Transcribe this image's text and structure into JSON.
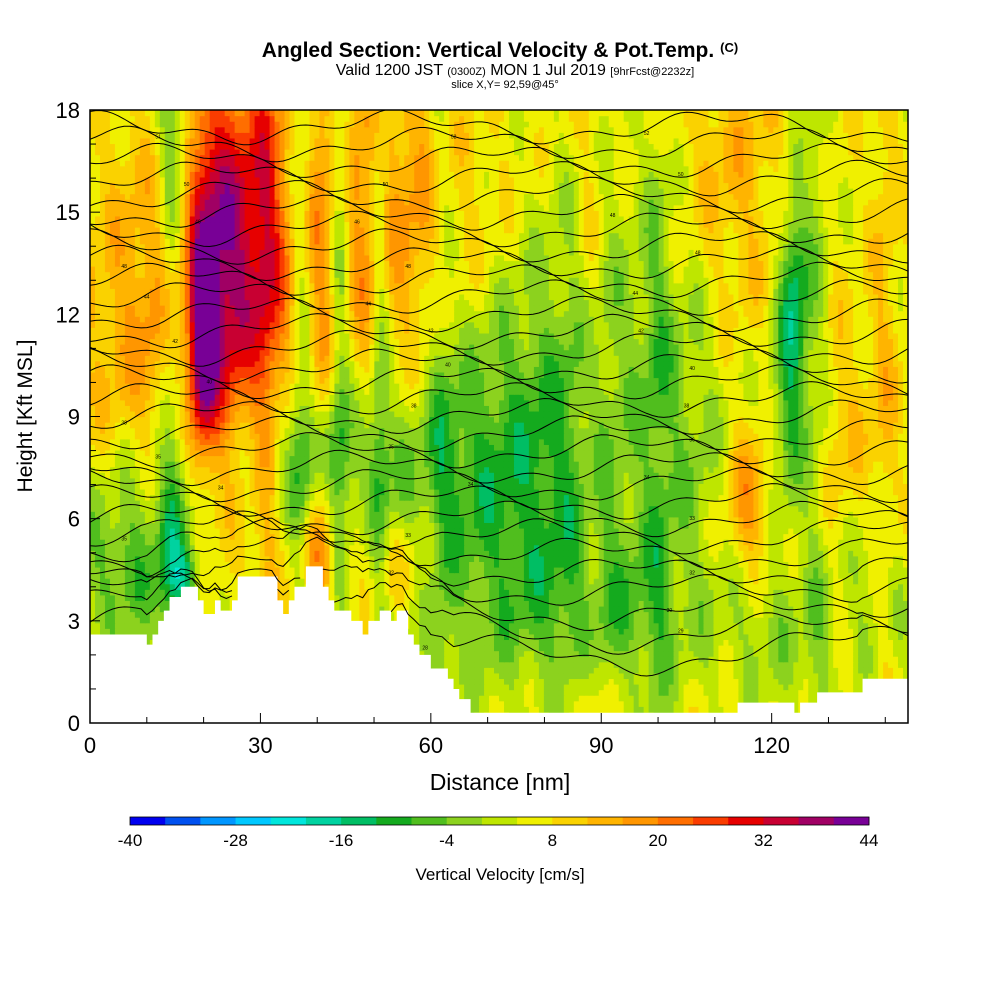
{
  "header": {
    "title": "Angled Section: Vertical Velocity & Pot.Temp.",
    "title_mark": "(C)",
    "subtitle_valid": "Valid 1200 JST",
    "subtitle_z": "(0300Z)",
    "subtitle_date": "MON 1 Jul 2019",
    "subtitle_fcst": "[9hrFcst@2232z]",
    "slice": "slice X,Y= 92,59@45°"
  },
  "colorbar": {
    "label": "Vertical Velocity [cm/s]",
    "tick_labels": [
      "-40",
      "-28",
      "-16",
      "-4",
      "8",
      "20",
      "32",
      "44"
    ],
    "levels": [
      -40,
      -36,
      -32,
      -28,
      -24,
      -20,
      -16,
      -12,
      -8,
      -4,
      0,
      4,
      8,
      12,
      16,
      20,
      24,
      28,
      32,
      36,
      40,
      44
    ],
    "colors": [
      "#0000f0",
      "#0050f0",
      "#0096ff",
      "#00c8ff",
      "#00e6dc",
      "#00d2a0",
      "#00be64",
      "#14aa1e",
      "#50be1e",
      "#8cd21e",
      "#bee600",
      "#f0f000",
      "#fad200",
      "#ffb400",
      "#ff9600",
      "#ff6e00",
      "#fa3c00",
      "#e60000",
      "#c80032",
      "#a00064",
      "#780096"
    ]
  },
  "chart_data": {
    "type": "heatmap",
    "title": "Angled Section: Vertical Velocity & Pot.Temp.",
    "xlabel": "Distance [nm]",
    "ylabel": "Height [Kft MSL]",
    "xlim": [
      0,
      144
    ],
    "ylim": [
      0,
      18
    ],
    "x_ticks": [
      0,
      30,
      60,
      90,
      120
    ],
    "x_tick_labels": [
      "0",
      "30",
      "60",
      "90",
      "120"
    ],
    "y_ticks": [
      0,
      3,
      6,
      9,
      12,
      15,
      18
    ],
    "y_tick_labels": [
      "0",
      "3",
      "6",
      "9",
      "12",
      "15",
      "18"
    ],
    "grid": false,
    "legend": "colorbar-bottom",
    "field": "Vertical Velocity [cm/s]",
    "background_value": 6,
    "features": [
      {
        "x": 20,
        "y": 12.5,
        "sx": 7,
        "sy": 4.5,
        "v": 30
      },
      {
        "x": 20,
        "y": 11,
        "sx": 1.5,
        "sy": 1.8,
        "v": 20
      },
      {
        "x": 25,
        "y": 15,
        "sx": 5,
        "sy": 3,
        "v": 10
      },
      {
        "x": 4,
        "y": 11,
        "sx": 6,
        "sy": 4,
        "v": 6
      },
      {
        "x": 16,
        "y": 15,
        "sx": 2,
        "sy": 8,
        "v": -14
      },
      {
        "x": 13,
        "y": 16,
        "sx": 3,
        "sy": 5,
        "v": -6
      },
      {
        "x": 10,
        "y": 6,
        "sx": 10,
        "sy": 2,
        "v": -10
      },
      {
        "x": 17,
        "y": 4.3,
        "sx": 2,
        "sy": 0.6,
        "v": -12
      },
      {
        "x": 6,
        "y": 4,
        "sx": 6,
        "sy": 1.5,
        "v": -8
      },
      {
        "x": 34,
        "y": 13,
        "sx": 5,
        "sy": 5,
        "v": 10
      },
      {
        "x": 37,
        "y": 14,
        "sx": 1.4,
        "sy": 9,
        "v": -10
      },
      {
        "x": 44,
        "y": 14,
        "sx": 1.3,
        "sy": 7,
        "v": -10
      },
      {
        "x": 48,
        "y": 14,
        "sx": 3,
        "sy": 6,
        "v": 10
      },
      {
        "x": 51,
        "y": 12,
        "sx": 1.2,
        "sy": 8,
        "v": -10
      },
      {
        "x": 56,
        "y": 14,
        "sx": 4,
        "sy": 5,
        "v": 8
      },
      {
        "x": 38,
        "y": 8,
        "sx": 12,
        "sy": 1.5,
        "v": -10
      },
      {
        "x": 39,
        "y": 5,
        "sx": 2,
        "sy": 1,
        "v": 8
      },
      {
        "x": 55,
        "y": 4.6,
        "sx": 6,
        "sy": 1.2,
        "v": 8
      },
      {
        "x": 75,
        "y": 6.5,
        "sx": 22,
        "sy": 3.5,
        "v": -14
      },
      {
        "x": 82,
        "y": 12,
        "sx": 14,
        "sy": 4,
        "v": -6
      },
      {
        "x": 65,
        "y": 15,
        "sx": 10,
        "sy": 3,
        "v": 6
      },
      {
        "x": 90,
        "y": 3,
        "sx": 12,
        "sy": 1.4,
        "v": -6
      },
      {
        "x": 112,
        "y": 16,
        "sx": 8,
        "sy": 4,
        "v": 8
      },
      {
        "x": 104,
        "y": 11,
        "sx": 6,
        "sy": 4,
        "v": -6
      },
      {
        "x": 124,
        "y": 12.5,
        "sx": 1.8,
        "sy": 2.5,
        "v": -18
      },
      {
        "x": 123,
        "y": 9,
        "sx": 3,
        "sy": 3,
        "v": -10
      },
      {
        "x": 116,
        "y": 6.5,
        "sx": 3,
        "sy": 1.6,
        "v": 14
      },
      {
        "x": 120,
        "y": 2.5,
        "sx": 6,
        "sy": 1.5,
        "v": -6
      },
      {
        "x": 138,
        "y": 4,
        "sx": 5,
        "sy": 2,
        "v": -8
      },
      {
        "x": 132,
        "y": 8,
        "sx": 6,
        "sy": 3,
        "v": 6
      },
      {
        "x": 96,
        "y": 8,
        "sx": 6,
        "sy": 2,
        "v": 4
      }
    ],
    "streaks": [
      {
        "x": 14,
        "amp": -8
      },
      {
        "x": 31,
        "amp": 7
      },
      {
        "x": 41,
        "amp": 8
      },
      {
        "x": 62,
        "amp": -5
      },
      {
        "x": 88,
        "amp": 5
      },
      {
        "x": 100,
        "amp": -5
      },
      {
        "x": 128,
        "amp": -6
      },
      {
        "x": 140,
        "amp": 5
      }
    ],
    "terrain": [
      [
        0,
        2.6
      ],
      [
        10,
        2.6
      ],
      [
        10,
        2.3
      ],
      [
        11,
        2.3
      ],
      [
        11,
        2.6
      ],
      [
        12,
        2.6
      ],
      [
        12,
        3.0
      ],
      [
        13,
        3.0
      ],
      [
        13,
        3.3
      ],
      [
        14,
        3.3
      ],
      [
        14,
        3.7
      ],
      [
        16,
        3.7
      ],
      [
        16,
        4.0
      ],
      [
        19,
        4.0
      ],
      [
        19,
        3.6
      ],
      [
        20,
        3.6
      ],
      [
        20,
        3.2
      ],
      [
        22,
        3.2
      ],
      [
        22,
        3.6
      ],
      [
        23,
        3.6
      ],
      [
        23,
        3.3
      ],
      [
        25,
        3.3
      ],
      [
        25,
        3.6
      ],
      [
        26,
        3.6
      ],
      [
        26,
        4.3
      ],
      [
        33,
        4.3
      ],
      [
        33,
        3.6
      ],
      [
        34,
        3.6
      ],
      [
        34,
        3.2
      ],
      [
        35,
        3.2
      ],
      [
        35,
        3.6
      ],
      [
        36,
        3.6
      ],
      [
        36,
        4.0
      ],
      [
        38,
        4.0
      ],
      [
        38,
        4.6
      ],
      [
        41,
        4.6
      ],
      [
        41,
        4.0
      ],
      [
        42,
        4.0
      ],
      [
        42,
        3.6
      ],
      [
        43,
        3.6
      ],
      [
        43,
        3.3
      ],
      [
        46,
        3.3
      ],
      [
        46,
        3.0
      ],
      [
        48,
        3.0
      ],
      [
        48,
        2.6
      ],
      [
        49,
        2.6
      ],
      [
        49,
        3.0
      ],
      [
        51,
        3.0
      ],
      [
        51,
        3.3
      ],
      [
        53,
        3.3
      ],
      [
        53,
        3.0
      ],
      [
        54,
        3.0
      ],
      [
        54,
        3.3
      ],
      [
        56,
        3.3
      ],
      [
        56,
        2.6
      ],
      [
        57,
        2.6
      ],
      [
        57,
        2.3
      ],
      [
        58,
        2.3
      ],
      [
        58,
        2.0
      ],
      [
        60,
        2.0
      ],
      [
        60,
        1.6
      ],
      [
        63,
        1.6
      ],
      [
        63,
        1.3
      ],
      [
        64,
        1.3
      ],
      [
        64,
        1.0
      ],
      [
        65,
        1.0
      ],
      [
        65,
        0.7
      ],
      [
        67,
        0.7
      ],
      [
        67,
        0.3
      ],
      [
        114,
        0.3
      ],
      [
        114,
        0.6
      ],
      [
        124,
        0.6
      ],
      [
        124,
        0.3
      ],
      [
        125,
        0.3
      ],
      [
        125,
        0.6
      ],
      [
        128,
        0.6
      ],
      [
        128,
        0.9
      ],
      [
        136,
        0.9
      ],
      [
        136,
        1.3
      ],
      [
        144,
        1.3
      ]
    ],
    "theta_contours": {
      "base": [
        2.2,
        2.8,
        3.4,
        4.0,
        4.5,
        5.0,
        5.5,
        6.0,
        6.5,
        7.0,
        7.5,
        8.0,
        8.5,
        9.0,
        9.5,
        10.0,
        10.5,
        11.0,
        11.5,
        12.0,
        12.5,
        13.0,
        13.5,
        14.0,
        14.5,
        15.0,
        15.5,
        16.0,
        16.5,
        17.0,
        17.5
      ],
      "labels": [
        {
          "x": 59,
          "y": 2.2,
          "text": "28"
        },
        {
          "x": 104,
          "y": 2.7,
          "text": "29"
        },
        {
          "x": 102,
          "y": 3.3,
          "text": "30"
        },
        {
          "x": 106,
          "y": 4.4,
          "text": "32"
        },
        {
          "x": 53,
          "y": 4.4,
          "text": "32"
        },
        {
          "x": 56,
          "y": 5.5,
          "text": "33"
        },
        {
          "x": 106,
          "y": 6.0,
          "text": "33"
        },
        {
          "x": 6,
          "y": 5.4,
          "text": "35"
        },
        {
          "x": 67,
          "y": 7.0,
          "text": "34"
        },
        {
          "x": 98,
          "y": 7.2,
          "text": "34"
        },
        {
          "x": 23,
          "y": 6.9,
          "text": "34"
        },
        {
          "x": 12,
          "y": 7.8,
          "text": "35"
        },
        {
          "x": 53,
          "y": 8.1,
          "text": "35"
        },
        {
          "x": 106,
          "y": 8.3,
          "text": "36"
        },
        {
          "x": 6,
          "y": 8.8,
          "text": "38"
        },
        {
          "x": 57,
          "y": 9.3,
          "text": "38"
        },
        {
          "x": 105,
          "y": 9.3,
          "text": "38"
        },
        {
          "x": 21,
          "y": 10.0,
          "text": "40"
        },
        {
          "x": 63,
          "y": 10.5,
          "text": "40"
        },
        {
          "x": 106,
          "y": 10.4,
          "text": "40"
        },
        {
          "x": 15,
          "y": 11.2,
          "text": "42"
        },
        {
          "x": 60,
          "y": 11.5,
          "text": "42"
        },
        {
          "x": 97,
          "y": 11.5,
          "text": "42"
        },
        {
          "x": 49,
          "y": 12.3,
          "text": "44"
        },
        {
          "x": 96,
          "y": 12.6,
          "text": "44"
        },
        {
          "x": 10,
          "y": 12.5,
          "text": "44"
        },
        {
          "x": 6,
          "y": 13.4,
          "text": "48"
        },
        {
          "x": 56,
          "y": 13.4,
          "text": "48"
        },
        {
          "x": 107,
          "y": 13.8,
          "text": "48"
        },
        {
          "x": 19,
          "y": 14.7,
          "text": "46"
        },
        {
          "x": 47,
          "y": 14.7,
          "text": "46"
        },
        {
          "x": 92,
          "y": 14.9,
          "text": "48"
        },
        {
          "x": 17,
          "y": 15.8,
          "text": "50"
        },
        {
          "x": 52,
          "y": 15.8,
          "text": "50"
        },
        {
          "x": 104,
          "y": 16.1,
          "text": "50"
        },
        {
          "x": 12,
          "y": 17.2,
          "text": "51"
        },
        {
          "x": 64,
          "y": 17.2,
          "text": "52"
        },
        {
          "x": 98,
          "y": 17.3,
          "text": "52"
        }
      ]
    }
  }
}
